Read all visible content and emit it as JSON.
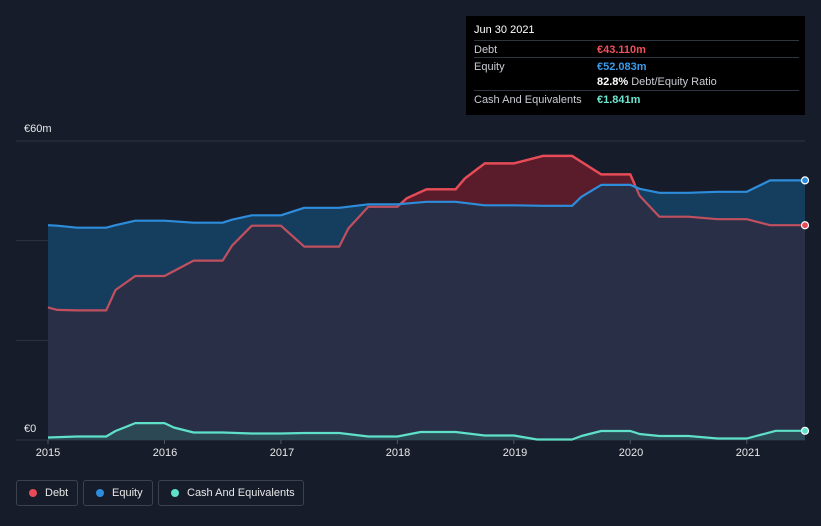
{
  "chart_data": {
    "type": "area",
    "ylabel_top": "€60m",
    "ylabel_bottom": "€0",
    "ylim": [
      0,
      60
    ],
    "xlim": [
      2015.0,
      2021.5
    ],
    "x_ticks": [
      "2015",
      "2016",
      "2017",
      "2018",
      "2019",
      "2020",
      "2021"
    ],
    "series": [
      {
        "name": "Debt",
        "color": "#e64b57",
        "points": [
          [
            2015.0,
            26.6
          ],
          [
            2015.08,
            26.1
          ],
          [
            2015.25,
            26.0
          ],
          [
            2015.5,
            26.0
          ],
          [
            2015.58,
            30.1
          ],
          [
            2015.75,
            32.9
          ],
          [
            2016.0,
            32.9
          ],
          [
            2016.25,
            36.0
          ],
          [
            2016.5,
            36.0
          ],
          [
            2016.58,
            39.0
          ],
          [
            2016.75,
            43.0
          ],
          [
            2017.0,
            43.0
          ],
          [
            2017.2,
            38.8
          ],
          [
            2017.5,
            38.8
          ],
          [
            2017.58,
            42.5
          ],
          [
            2017.75,
            46.8
          ],
          [
            2018.0,
            46.8
          ],
          [
            2018.08,
            48.5
          ],
          [
            2018.25,
            50.3
          ],
          [
            2018.5,
            50.3
          ],
          [
            2018.58,
            52.5
          ],
          [
            2018.75,
            55.5
          ],
          [
            2019.0,
            55.5
          ],
          [
            2019.25,
            57.0
          ],
          [
            2019.5,
            57.0
          ],
          [
            2019.75,
            53.3
          ],
          [
            2020.0,
            53.3
          ],
          [
            2020.08,
            49.0
          ],
          [
            2020.25,
            44.8
          ],
          [
            2020.5,
            44.8
          ],
          [
            2020.75,
            44.3
          ],
          [
            2021.0,
            44.3
          ],
          [
            2021.2,
            43.1
          ],
          [
            2021.5,
            43.1
          ]
        ]
      },
      {
        "name": "Equity",
        "color": "#2e8ddb",
        "points": [
          [
            2015.0,
            43.1
          ],
          [
            2015.08,
            43.0
          ],
          [
            2015.25,
            42.6
          ],
          [
            2015.5,
            42.6
          ],
          [
            2015.58,
            43.1
          ],
          [
            2015.75,
            44.0
          ],
          [
            2016.0,
            44.0
          ],
          [
            2016.25,
            43.6
          ],
          [
            2016.5,
            43.6
          ],
          [
            2016.58,
            44.2
          ],
          [
            2016.75,
            45.1
          ],
          [
            2017.0,
            45.1
          ],
          [
            2017.2,
            46.6
          ],
          [
            2017.5,
            46.6
          ],
          [
            2017.75,
            47.3
          ],
          [
            2018.0,
            47.3
          ],
          [
            2018.25,
            47.8
          ],
          [
            2018.5,
            47.8
          ],
          [
            2018.75,
            47.1
          ],
          [
            2019.0,
            47.1
          ],
          [
            2019.25,
            47.0
          ],
          [
            2019.5,
            47.0
          ],
          [
            2019.58,
            48.8
          ],
          [
            2019.75,
            51.2
          ],
          [
            2020.0,
            51.2
          ],
          [
            2020.08,
            50.4
          ],
          [
            2020.25,
            49.6
          ],
          [
            2020.5,
            49.6
          ],
          [
            2020.75,
            49.8
          ],
          [
            2021.0,
            49.8
          ],
          [
            2021.2,
            52.1
          ],
          [
            2021.5,
            52.1
          ]
        ]
      },
      {
        "name": "Cash And Equivalents",
        "color": "#5fe0c9",
        "points": [
          [
            2015.0,
            0.5
          ],
          [
            2015.25,
            0.7
          ],
          [
            2015.5,
            0.7
          ],
          [
            2015.58,
            1.8
          ],
          [
            2015.75,
            3.4
          ],
          [
            2016.0,
            3.4
          ],
          [
            2016.08,
            2.5
          ],
          [
            2016.25,
            1.5
          ],
          [
            2016.5,
            1.5
          ],
          [
            2016.75,
            1.3
          ],
          [
            2017.0,
            1.3
          ],
          [
            2017.2,
            1.4
          ],
          [
            2017.5,
            1.4
          ],
          [
            2017.75,
            0.7
          ],
          [
            2018.0,
            0.7
          ],
          [
            2018.2,
            1.6
          ],
          [
            2018.5,
            1.6
          ],
          [
            2018.75,
            0.9
          ],
          [
            2019.0,
            0.9
          ],
          [
            2019.2,
            0.1
          ],
          [
            2019.5,
            0.1
          ],
          [
            2019.58,
            0.8
          ],
          [
            2019.75,
            1.8
          ],
          [
            2020.0,
            1.8
          ],
          [
            2020.08,
            1.2
          ],
          [
            2020.25,
            0.8
          ],
          [
            2020.5,
            0.8
          ],
          [
            2020.75,
            0.3
          ],
          [
            2021.0,
            0.3
          ],
          [
            2021.08,
            0.8
          ],
          [
            2021.25,
            1.84
          ],
          [
            2021.5,
            1.84
          ]
        ]
      }
    ]
  },
  "tooltip": {
    "date": "Jun 30 2021",
    "debt_label": "Debt",
    "debt_value": "€43.110m",
    "equity_label": "Equity",
    "equity_value": "€52.083m",
    "ratio_value": "82.8%",
    "ratio_label": "Debt/Equity Ratio",
    "cash_label": "Cash And Equivalents",
    "cash_value": "€1.841m"
  },
  "legend": {
    "debt": "Debt",
    "equity": "Equity",
    "cash": "Cash And Equivalents"
  },
  "colors": {
    "background": "#161c2a",
    "debt": "#e64b57",
    "equity": "#2e8ddb",
    "cash": "#5fe0c9"
  }
}
